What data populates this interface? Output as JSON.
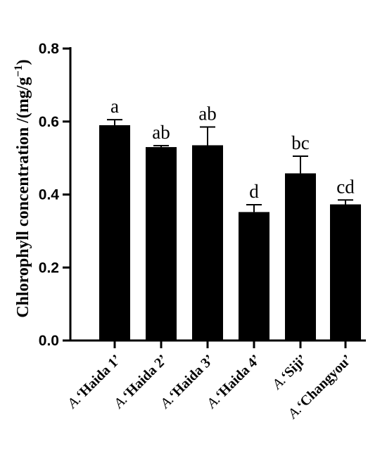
{
  "chart_data": {
    "type": "bar",
    "title": "",
    "xlabel": "",
    "ylabel": "Chlorophyll concentration /(mg/g",
    "ylabel_sup": "−1",
    "ylabel_close": ")",
    "ylim": [
      0,
      0.8
    ],
    "yticks": [
      "0.0",
      "0.2",
      "0.4",
      "0.6",
      "0.8"
    ],
    "categories": [
      {
        "prefix": "A.",
        "name": "‘Haida 1’"
      },
      {
        "prefix": "A.",
        "name": "‘Haida 2’"
      },
      {
        "prefix": "A.",
        "name": "‘Haida 3’"
      },
      {
        "prefix": "A.",
        "name": "‘Haida 4’"
      },
      {
        "prefix": "A.",
        "name": "‘Siji’"
      },
      {
        "prefix": "A.",
        "name": "‘Changyou’"
      }
    ],
    "values": [
      0.59,
      0.53,
      0.535,
      0.352,
      0.458,
      0.373
    ],
    "errors": [
      0.015,
      0.004,
      0.05,
      0.02,
      0.047,
      0.012
    ],
    "significance": [
      "a",
      "ab",
      "ab",
      "d",
      "bc",
      "cd"
    ],
    "bar_color": "#000000"
  }
}
